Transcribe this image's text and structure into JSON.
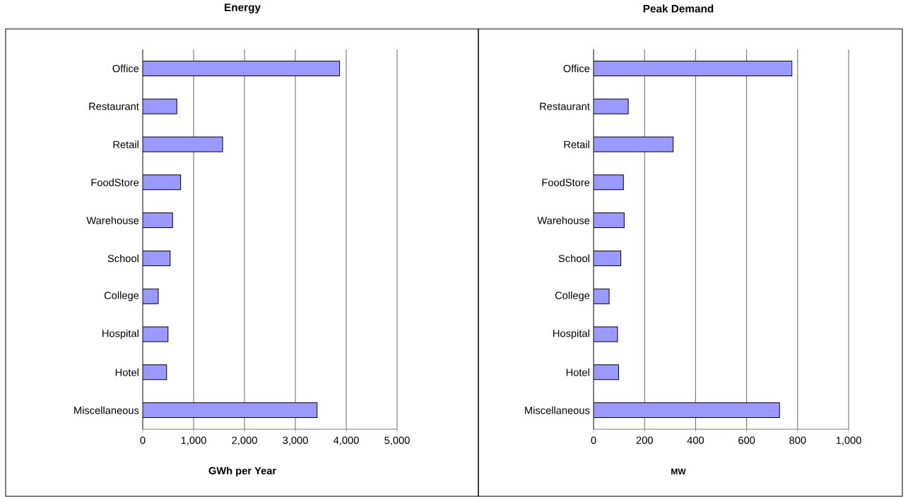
{
  "chart_data": [
    {
      "type": "bar",
      "orientation": "horizontal",
      "title": "Energy",
      "xlabel": "GWh per Year",
      "color": "#9999ff",
      "grid": "x",
      "categories": [
        "Office",
        "Restaurant",
        "Retail",
        "FoodStore",
        "Warehouse",
        "School",
        "College",
        "Hospital",
        "Hotel",
        "Miscellaneous"
      ],
      "values": [
        3870,
        670,
        1570,
        745,
        586,
        539,
        305,
        497,
        469,
        3427
      ],
      "xlim": [
        0,
        5000
      ],
      "xticks": [
        0,
        {
          "value": 1000,
          "label": "1,000"
        },
        {
          "value": 2000,
          "label": "2,000"
        },
        {
          "value": 3000,
          "label": "3,000"
        },
        {
          "value": 4000,
          "label": "4,000"
        },
        {
          "value": 5000,
          "label": "5,000"
        }
      ]
    },
    {
      "type": "bar",
      "orientation": "horizontal",
      "title": "Peak Demand",
      "xlabel": "MW",
      "color": "#9999ff",
      "grid": "x",
      "categories": [
        "Office",
        "Restaurant",
        "Retail",
        "FoodStore",
        "Warehouse",
        "School",
        "College",
        "Hospital",
        "Hotel",
        "Miscellaneous"
      ],
      "values": [
        778,
        136,
        312,
        117,
        120,
        107,
        61,
        94,
        98,
        729
      ],
      "xlim": [
        0,
        1000
      ],
      "xticks": [
        0,
        200,
        400,
        600,
        800,
        {
          "value": 1000,
          "label": "1,000"
        }
      ]
    }
  ]
}
